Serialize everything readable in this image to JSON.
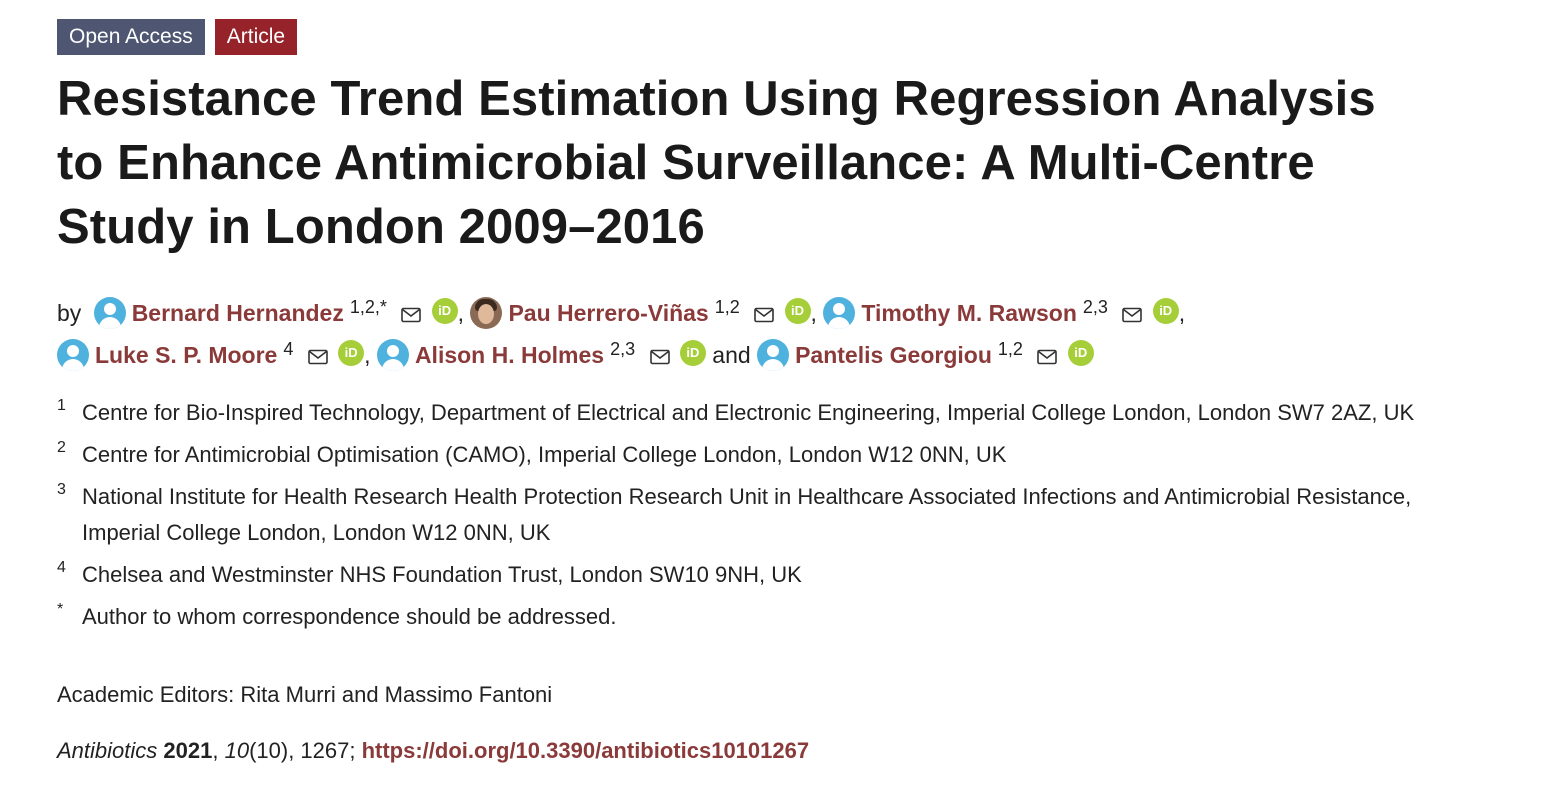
{
  "badges": {
    "open_access": "Open Access",
    "article": "Article"
  },
  "title": "Resistance Trend Estimation Using Regression Analysis to Enhance Antimicrobial Surveillance: A Multi-Centre Study in London 2009–2016",
  "authors_prefix": "by",
  "authors": [
    {
      "name": "Bernard Hernandez",
      "sup": "1,2,*",
      "after": ","
    },
    {
      "name": "Pau Herrero-Viñas",
      "sup": "1,2",
      "after": ","
    },
    {
      "name": "Timothy M. Rawson",
      "sup": "2,3",
      "after": ","
    },
    {
      "name": "Luke S. P. Moore",
      "sup": "4",
      "after": ","
    },
    {
      "name": "Alison H. Holmes",
      "sup": "2,3",
      "after": "and"
    },
    {
      "name": "Pantelis Georgiou",
      "sup": "1,2",
      "after": ""
    }
  ],
  "orcid_label": "iD",
  "affiliations": [
    {
      "num": "1",
      "text": "Centre for Bio-Inspired Technology, Department of Electrical and Electronic Engineering, Imperial College London, London SW7 2AZ, UK"
    },
    {
      "num": "2",
      "text": "Centre for Antimicrobial Optimisation (CAMO), Imperial College London, London W12 0NN, UK"
    },
    {
      "num": "3",
      "text": "National Institute for Health Research Health Protection Research Unit in Healthcare Associated Infections and Antimicrobial Resistance, Imperial College London, London W12 0NN, UK"
    },
    {
      "num": "4",
      "text": "Chelsea and Westminster NHS Foundation Trust, London SW10 9NH, UK"
    },
    {
      "num": "*",
      "text": "Author to whom correspondence should be addressed."
    }
  ],
  "editors": "Academic Editors: Rita Murri and Massimo Fantoni",
  "citation": {
    "journal": "Antibiotics",
    "year": "2021",
    "volume": "10",
    "issue": "(10)",
    "pages": ", 1267; ",
    "doi": "https://doi.org/10.3390/antibiotics10101267"
  },
  "colors": {
    "open_access_badge": "#4f5671",
    "article_badge": "#96222a",
    "author_link": "#8b3a3a",
    "orcid": "#a6ce39",
    "avatar": "#4fb1dd"
  }
}
